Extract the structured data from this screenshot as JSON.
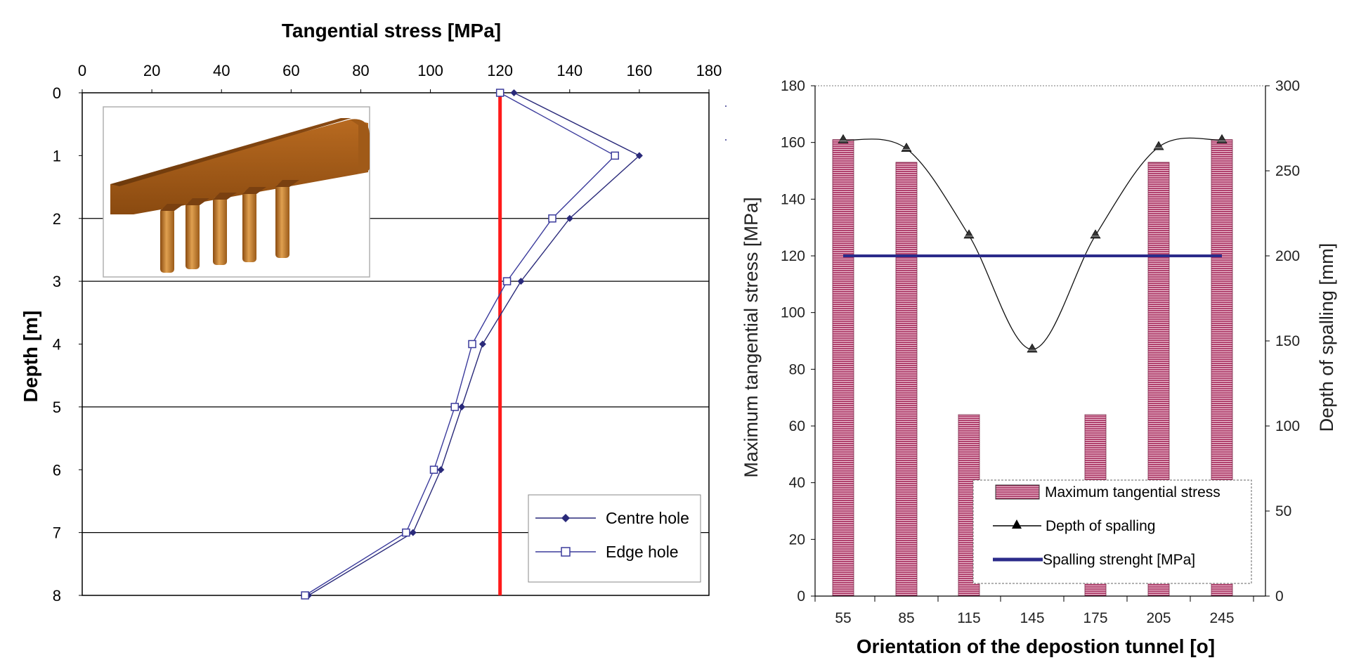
{
  "chart_data": [
    {
      "type": "line",
      "title": "Tangential stress [MPa]",
      "xlabel": "Tangential stress [MPa]",
      "ylabel": "Depth [m]",
      "xlim": [
        0,
        180
      ],
      "ylim": [
        0,
        8
      ],
      "x_ticks": [
        "0",
        "20",
        "40",
        "60",
        "80",
        "100",
        "120",
        "140",
        "160",
        "180"
      ],
      "y_ticks": [
        "0",
        "1",
        "2",
        "3",
        "4",
        "5",
        "6",
        "7",
        "8"
      ],
      "series": [
        {
          "name": "Centre hole",
          "marker": "filled-diamond",
          "color": "#2a2a7a",
          "points": [
            {
              "x": 124,
              "y": 0
            },
            {
              "x": 160,
              "y": 1
            },
            {
              "x": 140,
              "y": 2
            },
            {
              "x": 126,
              "y": 3
            },
            {
              "x": 115,
              "y": 4
            },
            {
              "x": 109,
              "y": 5
            },
            {
              "x": 103,
              "y": 6
            },
            {
              "x": 95,
              "y": 7
            },
            {
              "x": 65,
              "y": 8
            }
          ]
        },
        {
          "name": "Edge hole",
          "marker": "open-square",
          "color": "#3b3b9c",
          "points": [
            {
              "x": 120,
              "y": 0
            },
            {
              "x": 153,
              "y": 1
            },
            {
              "x": 135,
              "y": 2
            },
            {
              "x": 122,
              "y": 3
            },
            {
              "x": 112,
              "y": 4
            },
            {
              "x": 107,
              "y": 5
            },
            {
              "x": 101,
              "y": 6
            },
            {
              "x": 93,
              "y": 7
            },
            {
              "x": 64,
              "y": 8
            }
          ]
        }
      ],
      "reference_line": {
        "x": 120,
        "color": "#ff1a1a"
      },
      "legend_position": "bottom-right",
      "gridlines_at_depth": [
        2,
        3,
        5,
        7
      ],
      "inset": "3D diagram of tunnel with five vertical deposition holes"
    },
    {
      "type": "bar",
      "xlabel": "Orientation of the depostion tunnel [o]",
      "ylabel": "Maximum tangential stress [MPa]",
      "y2label": "Depth of spalling [mm]",
      "ylim": [
        0,
        180
      ],
      "y2lim": [
        0,
        300
      ],
      "categories": [
        "55",
        "85",
        "115",
        "145",
        "175",
        "205",
        "245"
      ],
      "y_ticks": [
        "0",
        "20",
        "40",
        "60",
        "80",
        "100",
        "120",
        "140",
        "160",
        "180"
      ],
      "y2_ticks": [
        "0",
        "50",
        "100",
        "150",
        "200",
        "250",
        "300"
      ],
      "series": [
        {
          "name": "Maximum tangential stress",
          "type": "bar",
          "color": "#b0426e",
          "values": [
            161,
            153,
            64,
            null,
            64,
            153,
            161
          ]
        },
        {
          "name": "Depth of spalling",
          "type": "line",
          "axis": "y2",
          "marker": "triangle",
          "values": [
            268,
            263,
            212,
            145,
            212,
            264,
            268
          ]
        },
        {
          "name": "Spalling strenght [MPa]",
          "type": "line",
          "color": "#2b2b8a",
          "values": [
            120,
            120,
            120,
            120,
            120,
            120,
            120
          ]
        }
      ],
      "legend_position": "bottom-right"
    }
  ]
}
